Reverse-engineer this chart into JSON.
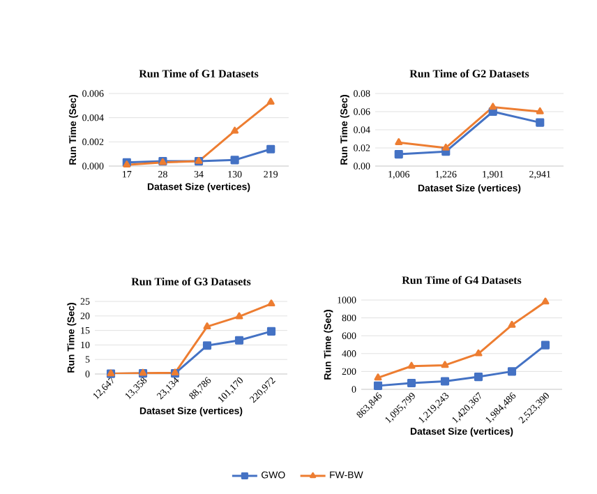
{
  "chart_data": [
    {
      "type": "line",
      "title": "Run Time of G1 Datasets",
      "xlabel": "Dataset Size (vertices)",
      "ylabel": "Run Time (Sec)",
      "categories": [
        "17",
        "28",
        "34",
        "130",
        "219"
      ],
      "series": [
        {
          "color": "#4472c4",
          "marker": "square",
          "values": [
            0.0003,
            0.0004,
            0.0004,
            0.0005,
            0.0014
          ]
        },
        {
          "color": "#ed7d31",
          "marker": "triangle",
          "values": [
            0.0001,
            0.0003,
            0.0004,
            0.0029,
            0.0053
          ]
        }
      ],
      "ylim": [
        0,
        0.006
      ],
      "yticks": [
        {
          "value": 0,
          "label": "0.000"
        },
        {
          "value": 0.002,
          "label": "0.002"
        },
        {
          "value": 0.004,
          "label": "0.004"
        },
        {
          "value": 0.006,
          "label": "0.006"
        }
      ],
      "grid": "y"
    },
    {
      "type": "line",
      "title": "Run Time of G2 Datasets",
      "xlabel": "Dataset Size (vertices)",
      "ylabel": "Run Time (Sec)",
      "categories": [
        "1,006",
        "1,226",
        "1,901",
        "2,941"
      ],
      "series": [
        {
          "color": "#4472c4",
          "marker": "square",
          "values": [
            0.013,
            0.016,
            0.06,
            0.048
          ]
        },
        {
          "color": "#ed7d31",
          "marker": "triangle",
          "values": [
            0.026,
            0.02,
            0.065,
            0.06
          ]
        }
      ],
      "ylim": [
        0,
        0.08
      ],
      "yticks": [
        {
          "value": 0,
          "label": "0.00"
        },
        {
          "value": 0.02,
          "label": "0.02"
        },
        {
          "value": 0.04,
          "label": "0.04"
        },
        {
          "value": 0.06,
          "label": "0.06"
        },
        {
          "value": 0.08,
          "label": "0.08"
        }
      ],
      "grid": "y"
    },
    {
      "type": "line",
      "title": "Run Time of G3 Datasets",
      "xlabel": "Dataset Size (vertices)",
      "ylabel": "Run Time (Sec)",
      "categories": [
        "12,647",
        "13,358",
        "23,134",
        "88,786",
        "101,170",
        "220,972"
      ],
      "series": [
        {
          "color": "#4472c4",
          "marker": "square",
          "values": [
            0.1,
            0.2,
            0.2,
            9.8,
            11.6,
            14.7
          ]
        },
        {
          "color": "#ed7d31",
          "marker": "triangle",
          "values": [
            0.1,
            0.3,
            0.4,
            16.3,
            19.8,
            24.2
          ]
        }
      ],
      "ylim": [
        0,
        25
      ],
      "yticks": [
        0,
        5,
        10,
        15,
        20,
        25
      ],
      "grid": "y"
    },
    {
      "type": "line",
      "title": "Run Time of G4 Datasets",
      "xlabel": "Dataset Size (vertices)",
      "ylabel": "Run Time (Sec)",
      "categories": [
        "863,846",
        "1,095,799",
        "1,219,243",
        "1,420,367",
        "1,984,486",
        "2,523,390"
      ],
      "series": [
        {
          "name": "GWO",
          "color": "#4472c4",
          "marker": "square",
          "values": [
            40,
            70,
            90,
            140,
            200,
            495
          ]
        },
        {
          "name": "FW-BW",
          "color": "#ed7d31",
          "marker": "triangle",
          "values": [
            130,
            260,
            270,
            400,
            720,
            980
          ]
        }
      ],
      "ylim": [
        0,
        1000
      ],
      "yticks": [
        0,
        200,
        400,
        600,
        800,
        1000
      ],
      "grid": "y",
      "legend": "bottom"
    }
  ]
}
